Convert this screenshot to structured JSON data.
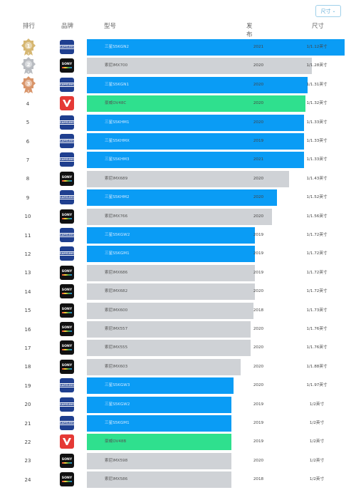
{
  "toolbar": {
    "dropdown_label": "尺寸"
  },
  "header": {
    "rank": "排行",
    "brand": "品牌",
    "model": "型号",
    "date": "发布时间",
    "size": "尺寸"
  },
  "colors": {
    "samsung": "#0a9cf5",
    "sony": "#cfd2d6",
    "wc": "#2fe08e"
  },
  "rows": [
    {
      "rank": "1",
      "brand": "samsung",
      "model": "三星S5KGN2",
      "year": "2021",
      "size": "1/1.12英寸",
      "bar_fraction": 1.0
    },
    {
      "rank": "2",
      "brand": "sony",
      "model": "索尼IMX700",
      "year": "2020",
      "size": "1/1.28英寸",
      "bar_fraction": 0.874
    },
    {
      "rank": "3",
      "brand": "samsung",
      "model": "三星S5KGN1",
      "year": "2020",
      "size": "1/1.31英寸",
      "bar_fraction": 0.855
    },
    {
      "rank": "4",
      "brand": "wc",
      "model": "豪威OV48C",
      "year": "2020",
      "size": "1/1.32英寸",
      "bar_fraction": 0.848
    },
    {
      "rank": "5",
      "brand": "samsung",
      "model": "三星S5KHM1",
      "year": "2020",
      "size": "1/1.33英寸",
      "bar_fraction": 0.842
    },
    {
      "rank": "6",
      "brand": "samsung",
      "model": "三星S5KHMX",
      "year": "2019",
      "size": "1/1.33英寸",
      "bar_fraction": 0.842
    },
    {
      "rank": "7",
      "brand": "samsung",
      "model": "三星S5KHM3",
      "year": "2021",
      "size": "1/1.33英寸",
      "bar_fraction": 0.842
    },
    {
      "rank": "8",
      "brand": "sony",
      "model": "索尼IMX689",
      "year": "2020",
      "size": "1/1.43英寸",
      "bar_fraction": 0.784
    },
    {
      "rank": "9",
      "brand": "samsung",
      "model": "三星S5KHM2",
      "year": "2020",
      "size": "1/1.52英寸",
      "bar_fraction": 0.737
    },
    {
      "rank": "10",
      "brand": "sony",
      "model": "索尼IMX766",
      "year": "2020",
      "size": "1/1.56英寸",
      "bar_fraction": 0.718
    },
    {
      "rank": "11",
      "brand": "samsung",
      "model": "三星S5KGW2",
      "year": "2019",
      "size": "1/1.72英寸",
      "bar_fraction": 0.651
    },
    {
      "rank": "12",
      "brand": "samsung",
      "model": "三星S5KGM1",
      "year": "2019",
      "size": "1/1.72英寸",
      "bar_fraction": 0.651
    },
    {
      "rank": "13",
      "brand": "sony",
      "model": "索尼IMX686",
      "year": "2019",
      "size": "1/1.72英寸",
      "bar_fraction": 0.651
    },
    {
      "rank": "14",
      "brand": "sony",
      "model": "索尼IMX682",
      "year": "2020",
      "size": "1/1.72英寸",
      "bar_fraction": 0.651
    },
    {
      "rank": "15",
      "brand": "sony",
      "model": "索尼IMX600",
      "year": "2018",
      "size": "1/1.73英寸",
      "bar_fraction": 0.647
    },
    {
      "rank": "16",
      "brand": "sony",
      "model": "索尼IMX557",
      "year": "2020",
      "size": "1/1.76英寸",
      "bar_fraction": 0.636
    },
    {
      "rank": "17",
      "brand": "sony",
      "model": "索尼IMX555",
      "year": "2020",
      "size": "1/1.76英寸",
      "bar_fraction": 0.636
    },
    {
      "rank": "18",
      "brand": "sony",
      "model": "索尼IMX603",
      "year": "2020",
      "size": "1/1.88英寸",
      "bar_fraction": 0.596
    },
    {
      "rank": "19",
      "brand": "samsung",
      "model": "三星S5KGW3",
      "year": "2020",
      "size": "1/1.97英寸",
      "bar_fraction": 0.568
    },
    {
      "rank": "20",
      "brand": "samsung",
      "model": "三星S5KGW2",
      "year": "2019",
      "size": "1/2英寸",
      "bar_fraction": 0.56
    },
    {
      "rank": "21",
      "brand": "samsung",
      "model": "三星S5KGM1",
      "year": "2019",
      "size": "1/2英寸",
      "bar_fraction": 0.56
    },
    {
      "rank": "22",
      "brand": "wc",
      "model": "豪威OV48B",
      "year": "2019",
      "size": "1/2英寸",
      "bar_fraction": 0.56
    },
    {
      "rank": "23",
      "brand": "sony",
      "model": "索尼IMX598",
      "year": "2020",
      "size": "1/2英寸",
      "bar_fraction": 0.56
    },
    {
      "rank": "24",
      "brand": "sony",
      "model": "索尼IMX586",
      "year": "2018",
      "size": "1/2英寸",
      "bar_fraction": 0.56
    }
  ]
}
